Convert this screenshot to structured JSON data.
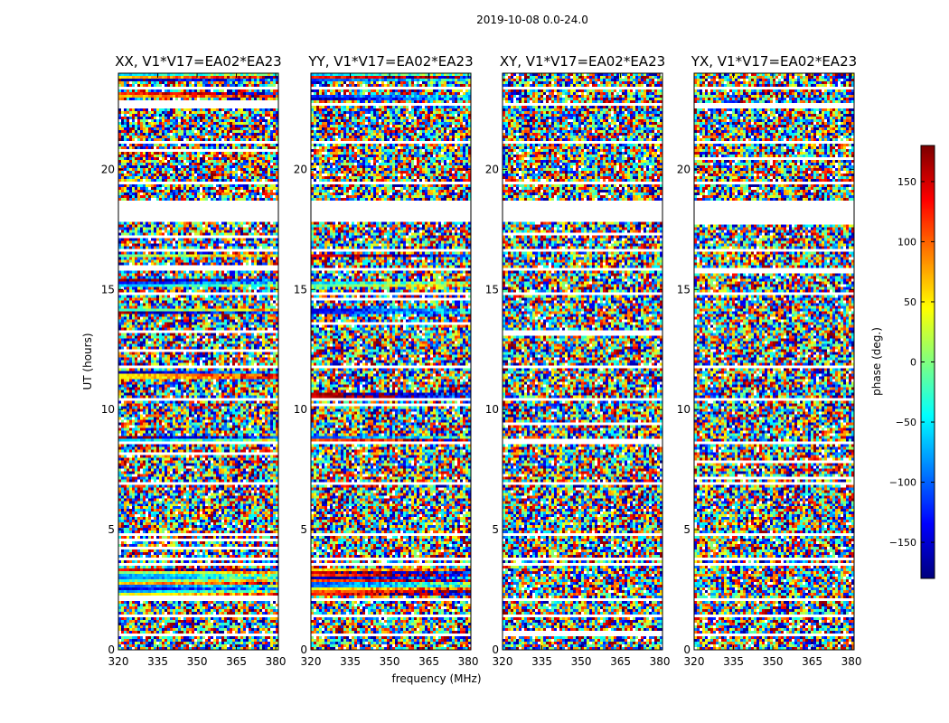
{
  "chart_data": {
    "type": "heatmap",
    "title": "2019-10-08 0.0-24.0",
    "xlabel": "frequency (MHz)",
    "ylabel": "UT (hours)",
    "xlim": [
      320,
      381
    ],
    "ylim": [
      0,
      24
    ],
    "xticks": [
      "320",
      "335",
      "350",
      "365",
      "380"
    ],
    "xtick_values": [
      320,
      335,
      350,
      365,
      380
    ],
    "yticks": [
      "0",
      "5",
      "10",
      "15",
      "20"
    ],
    "ytick_values": [
      0,
      5,
      10,
      15,
      20
    ],
    "panels": [
      {
        "title": "XX, V1*V17=EA02*EA23",
        "polarization": "XX"
      },
      {
        "title": "YY, V1*V17=EA02*EA23",
        "polarization": "YY"
      },
      {
        "title": "XY, V1*V17=EA02*EA23",
        "polarization": "XY"
      },
      {
        "title": "YX, V1*V17=EA02*EA23",
        "polarization": "YX"
      }
    ],
    "colorbar": {
      "label": "phase (deg.)",
      "range": [
        -180,
        180
      ],
      "ticks": [
        "−150",
        "−100",
        "−50",
        "0",
        "50",
        "100",
        "150"
      ],
      "tick_values": [
        -150,
        -100,
        -50,
        0,
        50,
        100,
        150
      ],
      "colormap": "jet"
    },
    "flagged_ut_bands": [
      [
        0.55,
        0.62
      ],
      [
        1.35,
        1.45
      ],
      [
        1.62,
        1.7
      ],
      [
        2.0,
        2.08
      ],
      [
        3.45,
        3.55
      ],
      [
        3.72,
        3.8
      ],
      [
        4.75,
        4.82
      ],
      [
        6.9,
        6.98
      ],
      [
        7.6,
        7.66
      ],
      [
        8.55,
        8.62
      ],
      [
        10.4,
        10.46
      ],
      [
        11.7,
        11.76
      ],
      [
        12.45,
        12.5
      ],
      [
        13.05,
        13.1
      ],
      [
        14.75,
        14.82
      ],
      [
        15.75,
        15.82
      ],
      [
        16.55,
        16.62
      ],
      [
        17.4,
        17.46
      ],
      [
        17.75,
        18.75
      ],
      [
        19.4,
        19.45
      ],
      [
        21.1,
        21.15
      ],
      [
        21.95,
        22.0
      ],
      [
        22.7,
        22.76
      ],
      [
        23.35,
        23.42
      ]
    ],
    "coherent_ut_bands": {
      "XX": [
        [
          2.2,
          3.4
        ],
        [
          8.7,
          8.9
        ],
        [
          11.3,
          11.6
        ],
        [
          14.0,
          14.2
        ],
        [
          15.1,
          15.4
        ],
        [
          16.3,
          16.45
        ],
        [
          23.0,
          23.2
        ],
        [
          23.7,
          23.95
        ]
      ],
      "YY": [
        [
          2.2,
          3.4
        ],
        [
          8.65,
          8.9
        ],
        [
          10.5,
          10.7
        ],
        [
          14.0,
          14.2
        ],
        [
          15.1,
          15.3
        ],
        [
          16.3,
          16.45
        ],
        [
          22.9,
          23.1
        ],
        [
          23.7,
          23.95
        ]
      ]
    }
  }
}
